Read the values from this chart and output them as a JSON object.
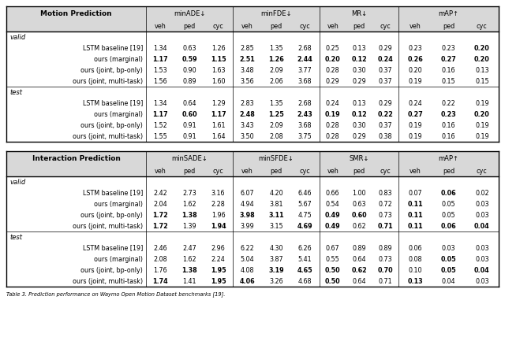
{
  "motion_header_main": "Motion Prediction",
  "motion_metrics": [
    "minADE↓",
    "minFDE↓",
    "MR↓",
    "mAP↑"
  ],
  "motion_subheaders": [
    "veh",
    "ped",
    "cyc"
  ],
  "interaction_header_main": "Interaction Prediction",
  "interaction_metrics": [
    "minSADE↓",
    "minSFDE↓",
    "SMR↓",
    "mAP↑"
  ],
  "interaction_subheaders": [
    "veh",
    "ped",
    "cyc"
  ],
  "motion_valid_rows": [
    {
      "method": "LSTM baseline [19]",
      "data": [
        1.34,
        0.63,
        1.26,
        2.85,
        1.35,
        2.68,
        0.25,
        0.13,
        0.29,
        0.23,
        0.23,
        0.2
      ],
      "bold": [
        false,
        false,
        false,
        false,
        false,
        false,
        false,
        false,
        false,
        false,
        false,
        true
      ]
    },
    {
      "method": "ours (marginal)",
      "data": [
        1.17,
        0.59,
        1.15,
        2.51,
        1.26,
        2.44,
        0.2,
        0.12,
        0.24,
        0.26,
        0.27,
        0.2
      ],
      "bold": [
        true,
        true,
        true,
        true,
        true,
        true,
        true,
        true,
        true,
        true,
        true,
        true
      ]
    },
    {
      "method": "ours (joint, bp-only)",
      "data": [
        1.53,
        0.9,
        1.63,
        3.48,
        2.09,
        3.77,
        0.28,
        0.3,
        0.37,
        0.2,
        0.16,
        0.13
      ],
      "bold": [
        false,
        false,
        false,
        false,
        false,
        false,
        false,
        false,
        false,
        false,
        false,
        false
      ]
    },
    {
      "method": "ours (joint, multi-task)",
      "data": [
        1.56,
        0.89,
        1.6,
        3.56,
        2.06,
        3.68,
        0.29,
        0.29,
        0.37,
        0.19,
        0.15,
        0.15
      ],
      "bold": [
        false,
        false,
        false,
        false,
        false,
        false,
        false,
        false,
        false,
        false,
        false,
        false
      ]
    }
  ],
  "motion_test_rows": [
    {
      "method": "LSTM baseline [19]",
      "data": [
        1.34,
        0.64,
        1.29,
        2.83,
        1.35,
        2.68,
        0.24,
        0.13,
        0.29,
        0.24,
        0.22,
        0.19
      ],
      "bold": [
        false,
        false,
        false,
        false,
        false,
        false,
        false,
        false,
        false,
        false,
        false,
        false
      ]
    },
    {
      "method": "ours (marginal)",
      "data": [
        1.17,
        0.6,
        1.17,
        2.48,
        1.25,
        2.43,
        0.19,
        0.12,
        0.22,
        0.27,
        0.23,
        0.2
      ],
      "bold": [
        true,
        true,
        true,
        true,
        true,
        true,
        true,
        true,
        true,
        true,
        true,
        true
      ]
    },
    {
      "method": "ours (joint, bp-only)",
      "data": [
        1.52,
        0.91,
        1.61,
        3.43,
        2.09,
        3.68,
        0.28,
        0.3,
        0.37,
        0.19,
        0.16,
        0.19
      ],
      "bold": [
        false,
        false,
        false,
        false,
        false,
        false,
        false,
        false,
        false,
        false,
        false,
        false
      ]
    },
    {
      "method": "ours (joint, multi-task)",
      "data": [
        1.55,
        0.91,
        1.64,
        3.5,
        2.08,
        3.75,
        0.28,
        0.29,
        0.38,
        0.19,
        0.16,
        0.19
      ],
      "bold": [
        false,
        false,
        false,
        false,
        false,
        false,
        false,
        false,
        false,
        false,
        false,
        false
      ]
    }
  ],
  "interaction_valid_rows": [
    {
      "method": "LSTM baseline [19]",
      "data": [
        2.42,
        2.73,
        3.16,
        6.07,
        4.2,
        6.46,
        0.66,
        1.0,
        0.83,
        0.07,
        0.06,
        0.02
      ],
      "bold": [
        false,
        false,
        false,
        false,
        false,
        false,
        false,
        false,
        false,
        false,
        true,
        false
      ]
    },
    {
      "method": "ours (marginal)",
      "data": [
        2.04,
        1.62,
        2.28,
        4.94,
        3.81,
        5.67,
        0.54,
        0.63,
        0.72,
        0.11,
        0.05,
        0.03
      ],
      "bold": [
        false,
        false,
        false,
        false,
        false,
        false,
        false,
        false,
        false,
        true,
        false,
        false
      ]
    },
    {
      "method": "ours (joint, bp-only)",
      "data": [
        1.72,
        1.38,
        1.96,
        3.98,
        3.11,
        4.75,
        0.49,
        0.6,
        0.73,
        0.11,
        0.05,
        0.03
      ],
      "bold": [
        true,
        true,
        false,
        true,
        true,
        false,
        true,
        true,
        false,
        true,
        false,
        false
      ]
    },
    {
      "method": "ours (joint, multi-task)",
      "data": [
        1.72,
        1.39,
        1.94,
        3.99,
        3.15,
        4.69,
        0.49,
        0.62,
        0.71,
        0.11,
        0.06,
        0.04
      ],
      "bold": [
        true,
        false,
        true,
        false,
        false,
        true,
        true,
        false,
        true,
        true,
        true,
        true
      ]
    }
  ],
  "interaction_test_rows": [
    {
      "method": "LSTM baseline [19]",
      "data": [
        2.46,
        2.47,
        2.96,
        6.22,
        4.3,
        6.26,
        0.67,
        0.89,
        0.89,
        0.06,
        0.03,
        0.03
      ],
      "bold": [
        false,
        false,
        false,
        false,
        false,
        false,
        false,
        false,
        false,
        false,
        false,
        false
      ]
    },
    {
      "method": "ours (marginal)",
      "data": [
        2.08,
        1.62,
        2.24,
        5.04,
        3.87,
        5.41,
        0.55,
        0.64,
        0.73,
        0.08,
        0.05,
        0.03
      ],
      "bold": [
        false,
        false,
        false,
        false,
        false,
        false,
        false,
        false,
        false,
        false,
        true,
        false
      ]
    },
    {
      "method": "ours (joint, bp-only)",
      "data": [
        1.76,
        1.38,
        1.95,
        4.08,
        3.19,
        4.65,
        0.5,
        0.62,
        0.7,
        0.1,
        0.05,
        0.04
      ],
      "bold": [
        false,
        true,
        true,
        false,
        true,
        true,
        true,
        true,
        true,
        false,
        true,
        true
      ]
    },
    {
      "method": "ours (joint, multi-task)",
      "data": [
        1.74,
        1.41,
        1.95,
        4.06,
        3.26,
        4.68,
        0.5,
        0.64,
        0.71,
        0.13,
        0.04,
        0.03
      ],
      "bold": [
        true,
        false,
        true,
        true,
        false,
        false,
        true,
        false,
        false,
        true,
        false,
        false
      ]
    }
  ],
  "caption": "Table 3. Prediction performance on Waymo Open Motion Dataset benchmarks [19].",
  "bg_color": "#ffffff",
  "header_bg": "#d8d8d8",
  "line_color": "#000000"
}
